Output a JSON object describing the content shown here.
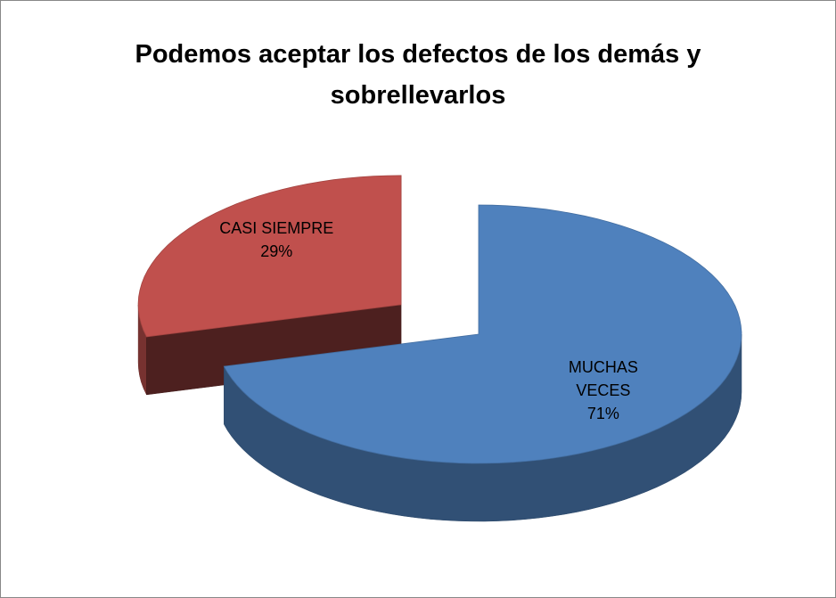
{
  "chart_data": {
    "type": "pie3d",
    "title": "Podemos aceptar los defectos de los demás y sobrellevarlos",
    "categories": [
      "MUCHAS VECES",
      "CASI SIEMPRE"
    ],
    "values": [
      71,
      29
    ],
    "value_labels": [
      "71%",
      "29%"
    ],
    "colors": [
      "#4f81bd",
      "#c0504d"
    ]
  }
}
